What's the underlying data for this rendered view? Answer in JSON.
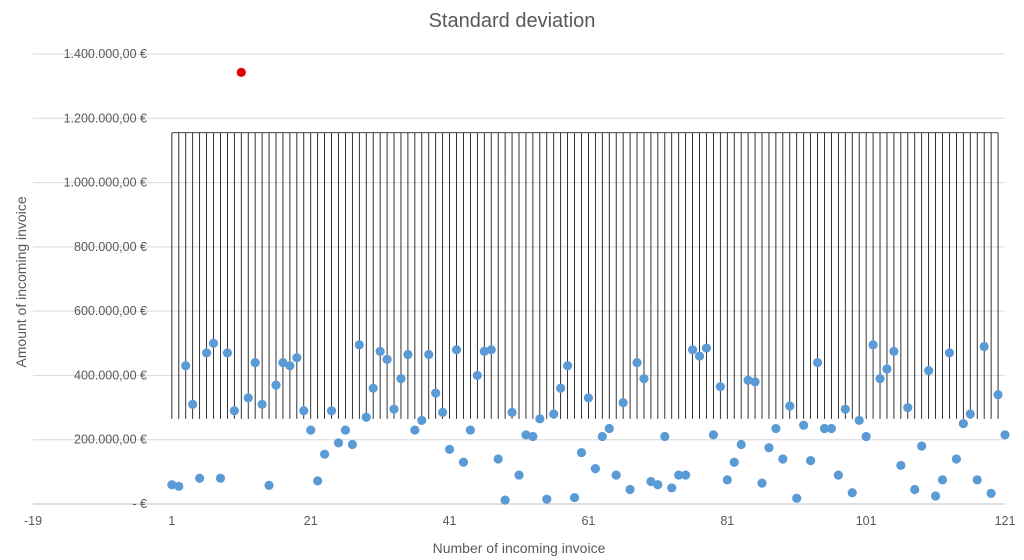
{
  "chart_data": {
    "type": "scatter",
    "title": "Standard deviation",
    "xlabel": "Number of incoming invoice",
    "ylabel": "Amount of incoming invoice",
    "xlim": [
      -19,
      121
    ],
    "ylim": [
      0,
      1400000
    ],
    "x_ticks": [
      -19,
      1,
      21,
      41,
      61,
      81,
      101,
      121
    ],
    "y_ticks": [
      0,
      200000,
      400000,
      600000,
      800000,
      1000000,
      1200000,
      1400000
    ],
    "x_tick_labels": [
      "-19",
      "1",
      "21",
      "41",
      "61",
      "81",
      "101",
      "121"
    ],
    "y_tick_labels": [
      "-   €",
      "200.000,00 €",
      "400.000,00 €",
      "600.000,00 €",
      "800.000,00 €",
      "1.000.000,00 €",
      "1.200.000,00 €",
      "1.400.000,00 €"
    ],
    "grid": true,
    "band": {
      "lower": 265000,
      "upper": 1155000,
      "x_from": 1,
      "x_to": 120
    },
    "colors": {
      "points": "#5b9bd5",
      "outlier": "#e00000",
      "band_lines": "#000000",
      "grid": "#d9d9d9",
      "text": "#595959"
    },
    "outlier": {
      "x": 11,
      "y": 1343000
    },
    "series": [
      {
        "x": [
          1,
          2,
          3,
          4,
          5,
          6,
          7,
          8,
          9,
          10,
          12,
          13,
          14,
          15,
          16,
          17,
          18,
          19,
          20,
          21,
          22,
          23,
          24,
          25,
          26,
          27,
          28,
          29,
          30,
          31,
          32,
          33,
          34,
          35,
          36,
          37,
          38,
          39,
          40,
          41,
          42,
          43,
          44,
          45,
          46,
          47,
          48,
          49,
          50,
          51,
          52,
          53,
          54,
          55,
          56,
          57,
          58,
          59,
          60,
          61,
          62,
          63,
          64,
          65,
          66,
          67,
          68,
          69,
          70,
          71,
          72,
          73,
          74,
          75,
          76,
          77,
          78,
          79,
          80,
          81,
          82,
          83,
          84,
          85,
          86,
          87,
          88,
          89,
          90,
          91,
          92,
          93,
          94,
          95,
          96,
          97,
          98,
          99,
          100,
          101,
          102,
          103,
          104,
          105,
          106,
          107,
          108,
          109,
          110,
          111,
          112,
          113,
          114,
          115,
          116,
          117,
          118,
          119,
          120,
          121
        ],
        "y": [
          60000,
          55000,
          430000,
          310000,
          80000,
          470000,
          500000,
          80000,
          470000,
          290000,
          330000,
          440000,
          310000,
          58000,
          370000,
          440000,
          430000,
          455000,
          290000,
          230000,
          72000,
          155000,
          290000,
          190000,
          230000,
          185000,
          495000,
          270000,
          360000,
          475000,
          450000,
          295000,
          390000,
          465000,
          230000,
          260000,
          465000,
          345000,
          285000,
          170000,
          480000,
          130000,
          230000,
          400000,
          475000,
          480000,
          140000,
          12000,
          285000,
          90000,
          215000,
          210000,
          265000,
          15000,
          280000,
          360000,
          430000,
          20000,
          160000,
          330000,
          110000,
          210000,
          235000,
          90000,
          315000,
          45000,
          440000,
          390000,
          70000,
          60000,
          210000,
          50000,
          90000,
          90000,
          480000,
          460000,
          485000,
          215000,
          365000,
          75000,
          130000,
          185000,
          385000,
          380000,
          65000,
          175000,
          235000,
          140000,
          305000,
          18000,
          245000,
          135000,
          440000,
          235000,
          235000,
          90000,
          295000,
          35000,
          260000,
          210000,
          495000,
          390000,
          420000,
          475000,
          120000,
          300000,
          45000,
          180000,
          415000,
          25000,
          75000,
          470000,
          140000,
          250000,
          280000,
          75000,
          490000,
          33000,
          340000,
          215000
        ]
      }
    ]
  }
}
